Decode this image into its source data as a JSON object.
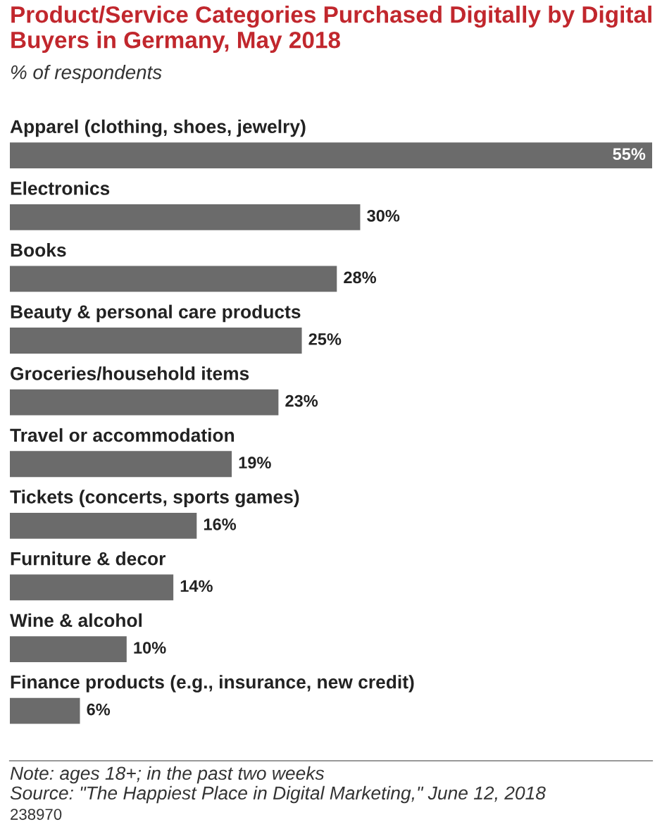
{
  "chart_data": {
    "type": "bar",
    "orientation": "horizontal",
    "title": "Product/Service Categories Purchased Digitally by Digital Buyers in Germany, May 2018",
    "subtitle": "% of respondents",
    "categories": [
      "Apparel (clothing, shoes, jewelry)",
      "Electronics",
      "Books",
      "Beauty & personal care products",
      "Groceries/household items",
      "Travel or accommodation",
      "Tickets (concerts, sports games)",
      "Furniture & decor",
      "Wine & alcohol",
      "Finance products (e.g., insurance, new credit)"
    ],
    "values": [
      55,
      30,
      28,
      25,
      23,
      19,
      16,
      14,
      10,
      6
    ],
    "value_labels": [
      "55%",
      "30%",
      "28%",
      "25%",
      "23%",
      "19%",
      "16%",
      "14%",
      "10%",
      "6%"
    ],
    "color": "#6b6b6b",
    "annotations": [
      "Note: ages 18+; in the past two weeks",
      "Source: \"The Happiest Place in Digital Marketing,\" June 12, 2018",
      "238970"
    ]
  }
}
